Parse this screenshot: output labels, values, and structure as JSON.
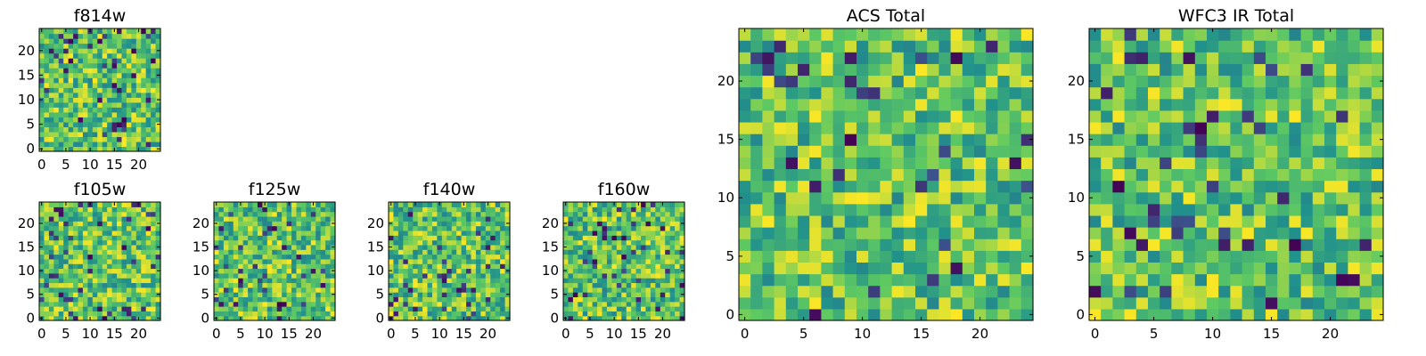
{
  "chart_data": [
    {
      "type": "heatmap",
      "title": "f814w",
      "xticks": [
        0,
        5,
        10,
        15,
        20
      ],
      "yticks": [
        0,
        5,
        10,
        15,
        20
      ],
      "xlim": [
        0,
        24
      ],
      "ylim": [
        0,
        24
      ],
      "colormap": "viridis"
    },
    {
      "type": "heatmap",
      "title": "f105w",
      "xticks": [
        0,
        5,
        10,
        15,
        20
      ],
      "yticks": [
        0,
        5,
        10,
        15,
        20
      ],
      "xlim": [
        0,
        24
      ],
      "ylim": [
        0,
        24
      ],
      "colormap": "viridis"
    },
    {
      "type": "heatmap",
      "title": "f125w",
      "xticks": [
        0,
        5,
        10,
        15,
        20
      ],
      "yticks": [
        0,
        5,
        10,
        15,
        20
      ],
      "xlim": [
        0,
        24
      ],
      "ylim": [
        0,
        24
      ],
      "colormap": "viridis"
    },
    {
      "type": "heatmap",
      "title": "f140w",
      "xticks": [
        0,
        5,
        10,
        15,
        20
      ],
      "yticks": [
        0,
        5,
        10,
        15,
        20
      ],
      "xlim": [
        0,
        24
      ],
      "ylim": [
        0,
        24
      ],
      "colormap": "viridis"
    },
    {
      "type": "heatmap",
      "title": "f160w",
      "xticks": [
        0,
        5,
        10,
        15,
        20
      ],
      "yticks": [
        0,
        5,
        10,
        15,
        20
      ],
      "xlim": [
        0,
        24
      ],
      "ylim": [
        0,
        24
      ],
      "colormap": "viridis"
    },
    {
      "type": "heatmap",
      "title": "ACS Total",
      "xticks": [
        0,
        5,
        10,
        15,
        20
      ],
      "yticks": [
        0,
        5,
        10,
        15,
        20
      ],
      "xlim": [
        0,
        24
      ],
      "ylim": [
        0,
        24
      ],
      "colormap": "viridis"
    },
    {
      "type": "heatmap",
      "title": "WFC3 IR Total",
      "xticks": [
        0,
        5,
        10,
        15,
        20
      ],
      "yticks": [
        0,
        5,
        10,
        15,
        20
      ],
      "xlim": [
        0,
        24
      ],
      "ylim": [
        0,
        24
      ],
      "colormap": "viridis"
    }
  ]
}
